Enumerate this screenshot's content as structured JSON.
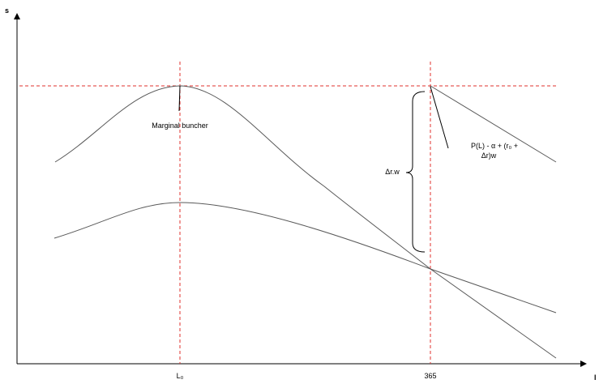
{
  "axes": {
    "y_label": "s",
    "x_label": "l"
  },
  "ticks": {
    "l0": "L₀",
    "d365": "365"
  },
  "annotations": {
    "marginal": "Marginal buncher",
    "delta": "Δr.w",
    "formula_line1": "P(L) - α + (r₀ +",
    "formula_line2": "Δr)w"
  },
  "colors": {
    "curve": "#595959",
    "guide": "#e0302e",
    "axis": "#000000"
  }
}
